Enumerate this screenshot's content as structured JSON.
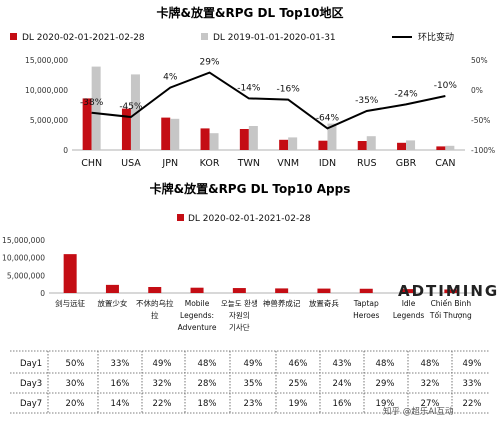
{
  "chart_data": [
    {
      "type": "bar",
      "title": "卡牌&放置&RPG DL Top10地区",
      "categories": [
        "CHN",
        "USA",
        "JPN",
        "KOR",
        "TWN",
        "VNM",
        "IDN",
        "RUS",
        "GBR",
        "CAN"
      ],
      "series": [
        {
          "name": "DL 2020-02-01-2021-02-28",
          "color": "#c40d14",
          "values": [
            8600000,
            6900000,
            5400000,
            3600000,
            3500000,
            1700000,
            1550000,
            1500000,
            1200000,
            600000
          ]
        },
        {
          "name": "DL 2019-01-01-2020-01-31",
          "color": "#c6c6c6",
          "values": [
            13900000,
            12600000,
            5200000,
            2800000,
            4000000,
            2100000,
            4400000,
            2300000,
            1600000,
            700000
          ]
        },
        {
          "name": "环比变动",
          "type": "line",
          "color": "#000000",
          "values": [
            -38,
            -45,
            4,
            29,
            -14,
            -16,
            -64,
            -35,
            -24,
            -10
          ],
          "labels": [
            "-38%",
            "-45%",
            "4%",
            "29%",
            "-14%",
            "-16%",
            "-64%",
            "-35%",
            "-24%",
            "-10%"
          ]
        }
      ],
      "y_left_ticks": [
        "0",
        "5,000,000",
        "10,000,000",
        "15,000,000"
      ],
      "ylim_left": [
        0,
        15000000
      ],
      "y_right_ticks": [
        "50%",
        "0%",
        "-50%",
        "-100%"
      ],
      "ylim_right": [
        -100,
        50
      ]
    },
    {
      "type": "bar",
      "title": "卡牌&放置&RPG DL Top10 Apps",
      "categories": [
        [
          "剑与远征"
        ],
        [
          "放置少女"
        ],
        [
          "不休的乌拉",
          "拉"
        ],
        [
          "Mobile",
          "Legends:",
          "Adventure"
        ],
        [
          "오늘도 환생",
          "자원의",
          "기사단"
        ],
        [
          "神兽养成记"
        ],
        [
          "放置奇兵"
        ],
        [
          "Taptap",
          "Heroes"
        ],
        [
          "Idle",
          "Legends"
        ],
        [
          "Chiến Binh",
          "Tối Thượng"
        ]
      ],
      "series": [
        {
          "name": "DL 2020-02-01-2021-02-28",
          "color": "#c40d14",
          "values": [
            11000000,
            2300000,
            1700000,
            1500000,
            1400000,
            1300000,
            1250000,
            1200000,
            1100000,
            1000000
          ]
        }
      ],
      "y_ticks": [
        "0",
        "5,000,000",
        "10,000,000",
        "15,000,000"
      ],
      "ylim": [
        0,
        15000000
      ]
    }
  ],
  "retention": {
    "rows": [
      {
        "day": "Day1",
        "values": [
          "50%",
          "33%",
          "49%",
          "48%",
          "49%",
          "46%",
          "43%",
          "48%",
          "48%",
          "49%"
        ]
      },
      {
        "day": "Day3",
        "values": [
          "30%",
          "16%",
          "32%",
          "28%",
          "35%",
          "25%",
          "24%",
          "29%",
          "32%",
          "33%"
        ]
      },
      {
        "day": "Day7",
        "values": [
          "20%",
          "14%",
          "22%",
          "18%",
          "23%",
          "19%",
          "16%",
          "19%",
          "27%",
          "22%"
        ]
      }
    ]
  },
  "branding": {
    "logo": "ADTIMING",
    "watermark": "知乎 @超乐AI互动"
  }
}
